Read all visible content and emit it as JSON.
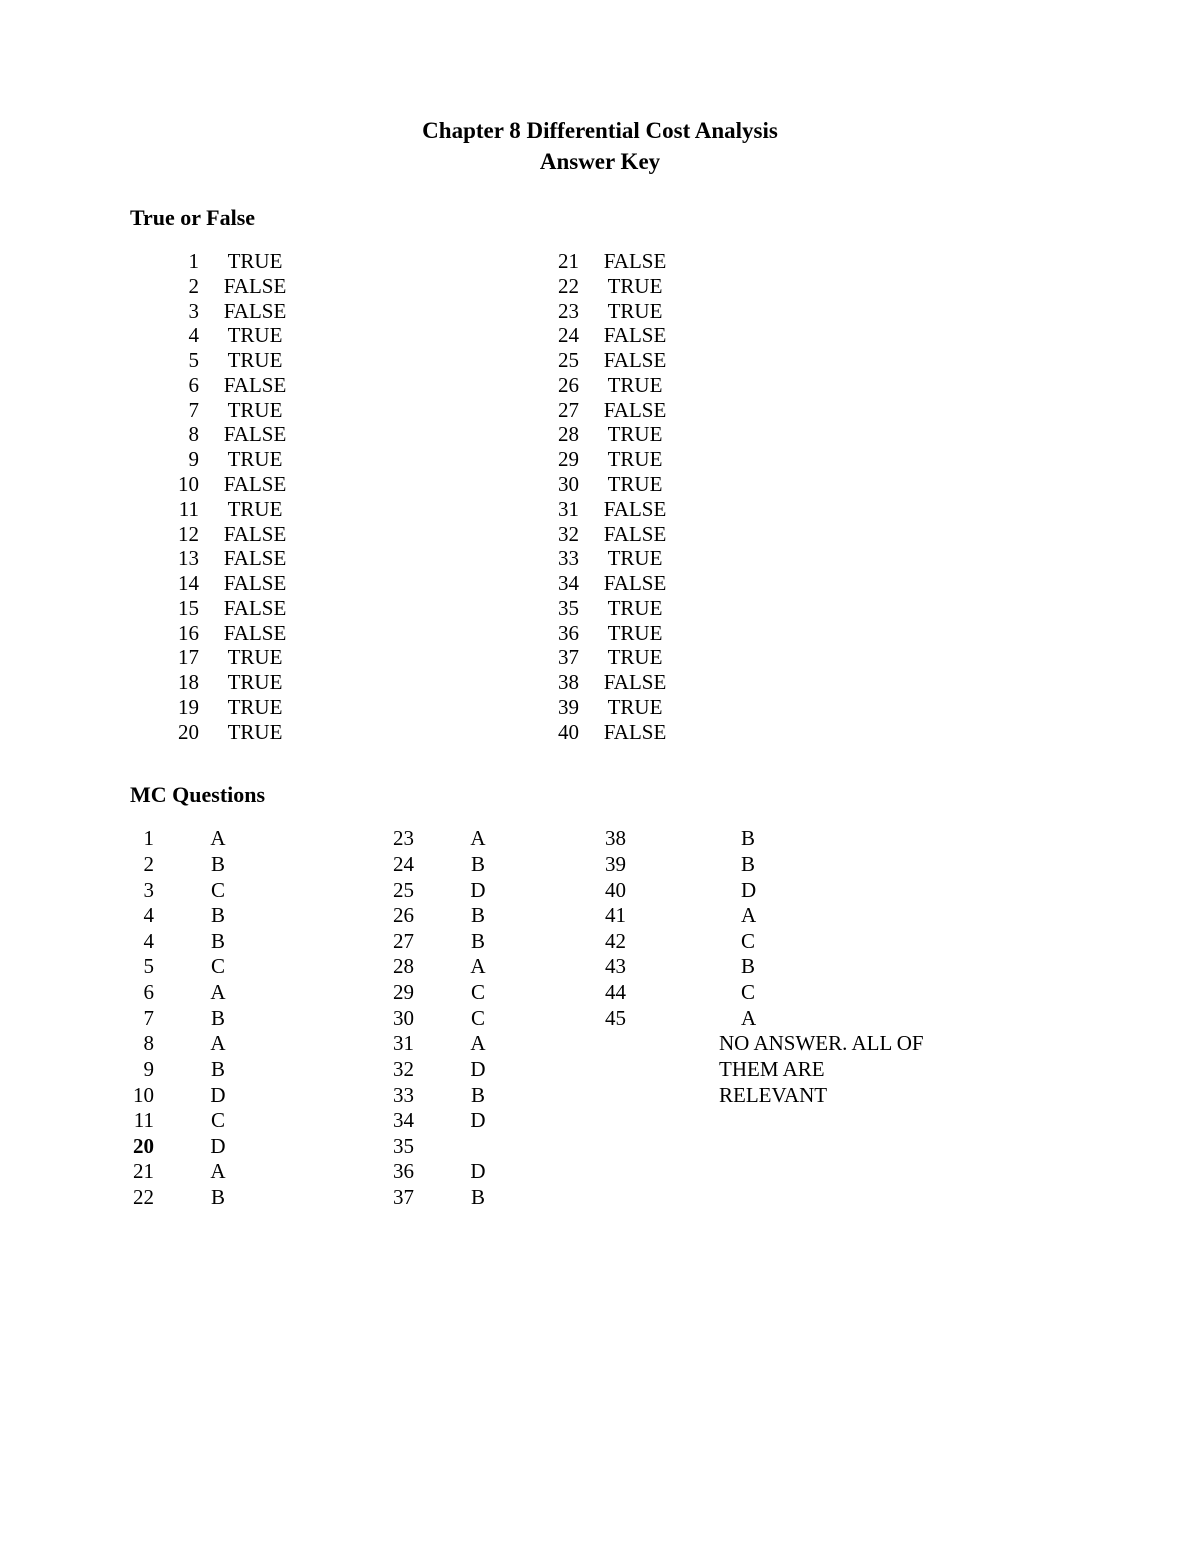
{
  "title_line1": "Chapter 8 Differential Cost Analysis",
  "title_line2": "Answer Key",
  "tf_heading": "True or False",
  "mc_heading": "MC Questions",
  "tf_col1": [
    {
      "n": "1",
      "a": "TRUE"
    },
    {
      "n": "2",
      "a": "FALSE"
    },
    {
      "n": "3",
      "a": "FALSE"
    },
    {
      "n": "4",
      "a": "TRUE"
    },
    {
      "n": "5",
      "a": "TRUE"
    },
    {
      "n": "6",
      "a": "FALSE"
    },
    {
      "n": "7",
      "a": "TRUE"
    },
    {
      "n": "8",
      "a": "FALSE"
    },
    {
      "n": "9",
      "a": "TRUE"
    },
    {
      "n": "10",
      "a": "FALSE"
    },
    {
      "n": "11",
      "a": "TRUE"
    },
    {
      "n": "12",
      "a": "FALSE"
    },
    {
      "n": "13",
      "a": "FALSE"
    },
    {
      "n": "14",
      "a": "FALSE"
    },
    {
      "n": "15",
      "a": "FALSE"
    },
    {
      "n": "16",
      "a": "FALSE"
    },
    {
      "n": "17",
      "a": "TRUE"
    },
    {
      "n": "18",
      "a": "TRUE"
    },
    {
      "n": "19",
      "a": "TRUE"
    },
    {
      "n": "20",
      "a": "TRUE"
    }
  ],
  "tf_col2": [
    {
      "n": "21",
      "a": "FALSE"
    },
    {
      "n": "22",
      "a": "TRUE"
    },
    {
      "n": "23",
      "a": "TRUE"
    },
    {
      "n": "24",
      "a": "FALSE"
    },
    {
      "n": "25",
      "a": "FALSE"
    },
    {
      "n": "26",
      "a": "TRUE"
    },
    {
      "n": "27",
      "a": "FALSE"
    },
    {
      "n": "28",
      "a": "TRUE"
    },
    {
      "n": "29",
      "a": "TRUE"
    },
    {
      "n": "30",
      "a": "TRUE"
    },
    {
      "n": "31",
      "a": "FALSE"
    },
    {
      "n": "32",
      "a": "FALSE"
    },
    {
      "n": "33",
      "a": "TRUE"
    },
    {
      "n": "34",
      "a": "FALSE"
    },
    {
      "n": "35",
      "a": "TRUE"
    },
    {
      "n": "36",
      "a": "TRUE"
    },
    {
      "n": "37",
      "a": "TRUE"
    },
    {
      "n": "38",
      "a": "FALSE"
    },
    {
      "n": "39",
      "a": "TRUE"
    },
    {
      "n": "40",
      "a": "FALSE"
    }
  ],
  "mc_col1": [
    {
      "n": "1",
      "a": "A",
      "bold": false
    },
    {
      "n": "2",
      "a": "B",
      "bold": false
    },
    {
      "n": "3",
      "a": "C",
      "bold": false
    },
    {
      "n": "4",
      "a": "B",
      "bold": false
    },
    {
      "n": "4",
      "a": "B",
      "bold": false
    },
    {
      "n": "5",
      "a": "C",
      "bold": false
    },
    {
      "n": "6",
      "a": "A",
      "bold": false
    },
    {
      "n": "7",
      "a": "B",
      "bold": false
    },
    {
      "n": "8",
      "a": "A",
      "bold": false
    },
    {
      "n": "9",
      "a": "B",
      "bold": false
    },
    {
      "n": "10",
      "a": "D",
      "bold": false
    },
    {
      "n": "11",
      "a": "C",
      "bold": false
    },
    {
      "n": "",
      "a": "",
      "bold": false
    },
    {
      "n": "20",
      "a": "D",
      "bold": true
    },
    {
      "n": "21",
      "a": "A",
      "bold": false
    },
    {
      "n": "22",
      "a": "B",
      "bold": false
    }
  ],
  "mc_col2": [
    {
      "n": "23",
      "a": "A"
    },
    {
      "n": "24",
      "a": "B"
    },
    {
      "n": "25",
      "a": "D"
    },
    {
      "n": "26",
      "a": "B"
    },
    {
      "n": "27",
      "a": "B"
    },
    {
      "n": "28",
      "a": "A"
    },
    {
      "n": "29",
      "a": "C"
    },
    {
      "n": "30",
      "a": "C"
    },
    {
      "n": "31",
      "a": "A"
    },
    {
      "n": "32",
      "a": "D"
    },
    {
      "n": "33",
      "a": "B"
    },
    {
      "n": "34",
      "a": "D"
    },
    {
      "n": "",
      "a": ""
    },
    {
      "n": "35",
      "a": ""
    },
    {
      "n": "36",
      "a": "D"
    },
    {
      "n": "37",
      "a": "B"
    }
  ],
  "mc_col3": [
    {
      "n": "38",
      "a": "B",
      "wide": false
    },
    {
      "n": "39",
      "a": "B",
      "wide": false
    },
    {
      "n": "40",
      "a": "D",
      "wide": false
    },
    {
      "n": "41",
      "a": "A",
      "wide": false
    },
    {
      "n": "42",
      "a": "C",
      "wide": false
    },
    {
      "n": "43",
      "a": "B",
      "wide": false
    },
    {
      "n": "44",
      "a": "C",
      "wide": false
    },
    {
      "n": "45",
      "a": "A",
      "wide": false
    },
    {
      "n": "",
      "a": "",
      "wide": false
    },
    {
      "n": "",
      "a": "",
      "wide": false
    },
    {
      "n": "",
      "a": "",
      "wide": false
    },
    {
      "n": "",
      "a": "",
      "wide": false
    },
    {
      "n": "",
      "a": "NO ANSWER. ALL OF THEM ARE RELEVANT",
      "wide": true
    }
  ],
  "colors": {
    "text": "#000000",
    "background": "#ffffff"
  },
  "typography": {
    "title_fontsize": 23,
    "heading_fontsize": 22,
    "body_fontsize": 21,
    "title_weight": "bold",
    "heading_weight": "bold",
    "font_family": "Palatino / Book Antiqua serif"
  }
}
